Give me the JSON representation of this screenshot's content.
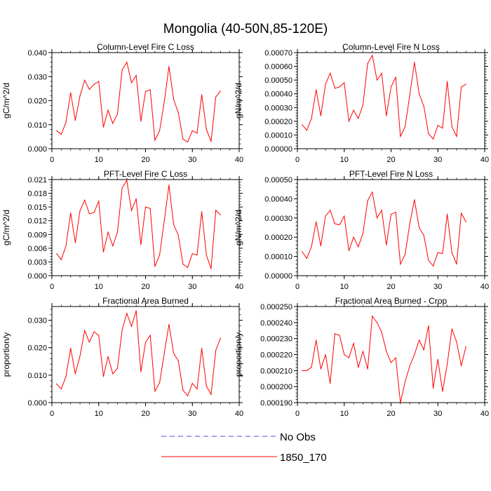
{
  "figure": {
    "title": "Mongolia (40-50N,85-120E)"
  },
  "legend": {
    "entries": [
      {
        "label": "No Obs",
        "color": "#4d4dc8",
        "dashed": true
      },
      {
        "label": "1850_170",
        "color": "#ff0000",
        "dashed": false
      }
    ]
  },
  "chart_data": [
    {
      "type": "line",
      "title": "Column-Level Fire C Loss",
      "xlabel": "",
      "ylabel": "gC/m^2/d",
      "xlim": [
        0,
        40
      ],
      "ylim": [
        0,
        0.04
      ],
      "xticks": [
        0,
        10,
        20,
        30,
        40
      ],
      "xtick_labels": [
        "0",
        "10",
        "20",
        "30",
        "40"
      ],
      "yticks": [
        0,
        0.01,
        0.02,
        0.03,
        0.04
      ],
      "ytick_labels": [
        "0.000",
        "0.010",
        "0.020",
        "0.030",
        "0.040"
      ],
      "grid": false,
      "series": [
        {
          "name": "1850_170",
          "color": "#ff0000",
          "x": [
            1,
            2,
            3,
            4,
            5,
            6,
            7,
            8,
            9,
            10,
            11,
            12,
            13,
            14,
            15,
            16,
            17,
            18,
            19,
            20,
            21,
            22,
            23,
            24,
            25,
            26,
            27,
            28,
            29,
            30,
            31,
            32,
            33,
            34,
            35,
            36
          ],
          "y": [
            0.0075,
            0.006,
            0.011,
            0.0233,
            0.0118,
            0.022,
            0.0285,
            0.0247,
            0.0268,
            0.028,
            0.009,
            0.016,
            0.0105,
            0.0145,
            0.0328,
            0.036,
            0.0275,
            0.0305,
            0.0115,
            0.0238,
            0.0245,
            0.0035,
            0.0075,
            0.0195,
            0.0342,
            0.0205,
            0.015,
            0.004,
            0.0028,
            0.0075,
            0.0065,
            0.0225,
            0.008,
            0.003,
            0.0215,
            0.024
          ]
        }
      ]
    },
    {
      "type": "line",
      "title": "Column-Level Fire N Loss",
      "xlabel": "",
      "ylabel": "gN/m^2/d",
      "xlim": [
        0,
        40
      ],
      "ylim": [
        0,
        0.0007
      ],
      "xticks": [
        0,
        10,
        20,
        30,
        40
      ],
      "xtick_labels": [
        "0",
        "10",
        "20",
        "30",
        "40"
      ],
      "yticks": [
        0,
        0.0001,
        0.0002,
        0.0003,
        0.0004,
        0.0005,
        0.0006,
        0.0007
      ],
      "ytick_labels": [
        "0.00000",
        "0.00010",
        "0.00020",
        "0.00030",
        "0.00040",
        "0.00050",
        "0.00060",
        "0.00070"
      ],
      "grid": false,
      "series": [
        {
          "name": "1850_170",
          "color": "#ff0000",
          "x": [
            1,
            2,
            3,
            4,
            5,
            6,
            7,
            8,
            9,
            10,
            11,
            12,
            13,
            14,
            15,
            16,
            17,
            18,
            19,
            20,
            21,
            22,
            23,
            24,
            25,
            26,
            27,
            28,
            29,
            30,
            31,
            32,
            33,
            34,
            35,
            36
          ],
          "y": [
            0.000175,
            0.000135,
            0.00022,
            0.00043,
            0.00024,
            0.00047,
            0.00055,
            0.00044,
            0.00045,
            0.00048,
            0.0002,
            0.00028,
            0.00022,
            0.00032,
            0.00062,
            0.00068,
            0.0005,
            0.00055,
            0.00024,
            0.00045,
            0.00052,
            9e-05,
            0.00016,
            0.00039,
            0.00063,
            0.0004,
            0.00031,
            0.00011,
            7e-05,
            0.00017,
            0.00015,
            0.00049,
            0.00016,
            9e-05,
            0.00045,
            0.00047
          ]
        }
      ]
    },
    {
      "type": "line",
      "title": "PFT-Level Fire C Loss",
      "xlabel": "",
      "ylabel": "gC/m^2/d",
      "xlim": [
        0,
        40
      ],
      "ylim": [
        0,
        0.021
      ],
      "xticks": [
        0,
        10,
        20,
        30,
        40
      ],
      "xtick_labels": [
        "0",
        "10",
        "20",
        "30",
        "40"
      ],
      "yticks": [
        0,
        0.003,
        0.006,
        0.009,
        0.012,
        0.015,
        0.018,
        0.021
      ],
      "ytick_labels": [
        "0.000",
        "0.003",
        "0.006",
        "0.009",
        "0.012",
        "0.015",
        "0.018",
        "0.021"
      ],
      "grid": false,
      "series": [
        {
          "name": "1850_170",
          "color": "#ff0000",
          "x": [
            1,
            2,
            3,
            4,
            5,
            6,
            7,
            8,
            9,
            10,
            11,
            12,
            13,
            14,
            15,
            16,
            17,
            18,
            19,
            20,
            21,
            22,
            23,
            24,
            25,
            26,
            27,
            28,
            29,
            30,
            31,
            32,
            33,
            34,
            35,
            36
          ],
          "y": [
            0.0048,
            0.0035,
            0.0065,
            0.0137,
            0.0072,
            0.0142,
            0.0165,
            0.0135,
            0.0138,
            0.0163,
            0.0052,
            0.0095,
            0.0065,
            0.0095,
            0.0192,
            0.0208,
            0.0142,
            0.0168,
            0.0068,
            0.015,
            0.0147,
            0.002,
            0.0045,
            0.012,
            0.0198,
            0.0112,
            0.0088,
            0.0025,
            0.0018,
            0.0048,
            0.0045,
            0.014,
            0.0045,
            0.0015,
            0.0143,
            0.0133
          ]
        }
      ]
    },
    {
      "type": "line",
      "title": "PFT-Level Fire N Loss",
      "xlabel": "",
      "ylabel": "gN/m^2/d",
      "xlim": [
        0,
        40
      ],
      "ylim": [
        0,
        0.0005
      ],
      "xticks": [
        0,
        10,
        20,
        30,
        40
      ],
      "xtick_labels": [
        "0",
        "10",
        "20",
        "30",
        "40"
      ],
      "yticks": [
        0,
        0.0001,
        0.0002,
        0.0003,
        0.0004,
        0.0005
      ],
      "ytick_labels": [
        "0.00000",
        "0.00010",
        "0.00020",
        "0.00030",
        "0.00040",
        "0.00050"
      ],
      "grid": false,
      "series": [
        {
          "name": "1850_170",
          "color": "#ff0000",
          "x": [
            1,
            2,
            3,
            4,
            5,
            6,
            7,
            8,
            9,
            10,
            11,
            12,
            13,
            14,
            15,
            16,
            17,
            18,
            19,
            20,
            21,
            22,
            23,
            24,
            25,
            26,
            27,
            28,
            29,
            30,
            31,
            32,
            33,
            34,
            35,
            36
          ],
          "y": [
            0.000125,
            9e-05,
            0.00015,
            0.00028,
            0.000155,
            0.00031,
            0.00034,
            0.00027,
            0.000265,
            0.00031,
            0.00013,
            0.0002,
            0.00015,
            0.00022,
            0.00039,
            0.000435,
            0.0003,
            0.00034,
            0.00016,
            0.00032,
            0.00033,
            6e-05,
            0.00011,
            0.00027,
            0.000395,
            0.00025,
            0.00021,
            8e-05,
            5e-05,
            0.00012,
            0.000115,
            0.00032,
            0.00012,
            6e-05,
            0.000325,
            0.00028
          ]
        }
      ]
    },
    {
      "type": "line",
      "title": "Fractional Area Burned",
      "xlabel": "",
      "ylabel": "proportion/y",
      "xlim": [
        0,
        40
      ],
      "ylim": [
        0,
        0.035
      ],
      "xticks": [
        0,
        10,
        20,
        30,
        40
      ],
      "xtick_labels": [
        "0",
        "10",
        "20",
        "30",
        "40"
      ],
      "yticks": [
        0,
        0.01,
        0.02,
        0.03
      ],
      "ytick_labels": [
        "0.000",
        "0.010",
        "0.020",
        "0.030"
      ],
      "grid": false,
      "series": [
        {
          "name": "1850_170",
          "color": "#ff0000",
          "x": [
            1,
            2,
            3,
            4,
            5,
            6,
            7,
            8,
            9,
            10,
            11,
            12,
            13,
            14,
            15,
            16,
            17,
            18,
            19,
            20,
            21,
            22,
            23,
            24,
            25,
            26,
            27,
            28,
            29,
            30,
            31,
            32,
            33,
            34,
            35,
            36
          ],
          "y": [
            0.0068,
            0.005,
            0.0095,
            0.0198,
            0.0105,
            0.017,
            0.0262,
            0.022,
            0.0258,
            0.0245,
            0.0095,
            0.0168,
            0.0105,
            0.0125,
            0.0265,
            0.0325,
            0.0278,
            0.0335,
            0.0112,
            0.022,
            0.0245,
            0.0042,
            0.0072,
            0.018,
            0.0285,
            0.018,
            0.0152,
            0.0045,
            0.0025,
            0.007,
            0.005,
            0.0198,
            0.006,
            0.003,
            0.019,
            0.0235
          ]
        }
      ]
    },
    {
      "type": "line",
      "title": "Fractional Area Burned - Crop",
      "xlabel": "",
      "ylabel": "proportion/y",
      "xlim": [
        0,
        40
      ],
      "ylim": [
        0.00019,
        0.00025
      ],
      "xticks": [
        0,
        10,
        20,
        30,
        40
      ],
      "xtick_labels": [
        "0",
        "10",
        "20",
        "30",
        "40"
      ],
      "yticks": [
        0.00019,
        0.0002,
        0.00021,
        0.00022,
        0.00023,
        0.00024,
        0.00025
      ],
      "ytick_labels": [
        "0.000190",
        "0.000200",
        "0.000210",
        "0.000220",
        "0.000230",
        "0.000240",
        "0.000250"
      ],
      "grid": false,
      "series": [
        {
          "name": "1850_170",
          "color": "#ff0000",
          "x": [
            1,
            2,
            3,
            4,
            5,
            6,
            7,
            8,
            9,
            10,
            11,
            12,
            13,
            14,
            15,
            16,
            17,
            18,
            19,
            20,
            21,
            22,
            23,
            24,
            25,
            26,
            27,
            28,
            29,
            30,
            31,
            32,
            33,
            34,
            35,
            36
          ],
          "y": [
            0.00021,
            0.00021,
            0.000212,
            0.000229,
            0.000211,
            0.00022,
            0.000202,
            0.000233,
            0.000232,
            0.00022,
            0.000218,
            0.000227,
            0.000212,
            0.000222,
            0.000211,
            0.000244,
            0.00024,
            0.000234,
            0.000222,
            0.000215,
            0.000218,
            0.00019,
            0.000203,
            0.000213,
            0.00022,
            0.000229,
            0.000223,
            0.000238,
            0.000199,
            0.000217,
            0.000197,
            0.000214,
            0.000236,
            0.000228,
            0.000213,
            0.000225
          ]
        }
      ]
    }
  ]
}
